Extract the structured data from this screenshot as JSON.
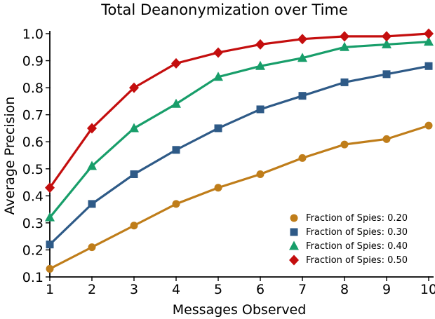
{
  "figure": {
    "background_color": "#ffffff",
    "text_color": "#000000",
    "axis_color": "#000000"
  },
  "chart_data": {
    "type": "line",
    "title": "Total Deanonymization over Time",
    "xlabel": "Messages Observed",
    "ylabel": "Average Precision",
    "xlim": [
      1,
      10
    ],
    "ylim": [
      0.1,
      1.0
    ],
    "grid": false,
    "x": [
      1,
      2,
      3,
      4,
      5,
      6,
      7,
      8,
      9,
      10
    ],
    "x_tick_labels": [
      "1",
      "2",
      "3",
      "4",
      "5",
      "6",
      "7",
      "8",
      "9",
      "10"
    ],
    "y_ticks": [
      0.1,
      0.2,
      0.3,
      0.4,
      0.5,
      0.6,
      0.7,
      0.8,
      0.9,
      1.0
    ],
    "y_tick_labels": [
      "0.1",
      "0.2",
      "0.3",
      "0.4",
      "0.5",
      "0.6",
      "0.7",
      "0.8",
      "0.9",
      "1.0"
    ],
    "legend": {
      "position": "lower-right-inside",
      "border": false
    },
    "series": [
      {
        "name": "Fraction of Spies: 0.20",
        "color": "#BF7D1A",
        "marker": "circle",
        "values": [
          0.13,
          0.21,
          0.29,
          0.37,
          0.43,
          0.48,
          0.54,
          0.59,
          0.61,
          0.66
        ]
      },
      {
        "name": "Fraction of Spies: 0.30",
        "color": "#2E5A87",
        "marker": "square",
        "values": [
          0.22,
          0.37,
          0.48,
          0.57,
          0.65,
          0.72,
          0.77,
          0.82,
          0.85,
          0.88
        ]
      },
      {
        "name": "Fraction of Spies: 0.40",
        "color": "#189E6A",
        "marker": "triangle",
        "values": [
          0.32,
          0.51,
          0.65,
          0.74,
          0.84,
          0.88,
          0.91,
          0.95,
          0.96,
          0.97
        ]
      },
      {
        "name": "Fraction of Spies: 0.50",
        "color": "#C40E0E",
        "marker": "diamond",
        "values": [
          0.43,
          0.65,
          0.8,
          0.89,
          0.93,
          0.96,
          0.98,
          0.99,
          0.99,
          1.0
        ]
      }
    ]
  }
}
